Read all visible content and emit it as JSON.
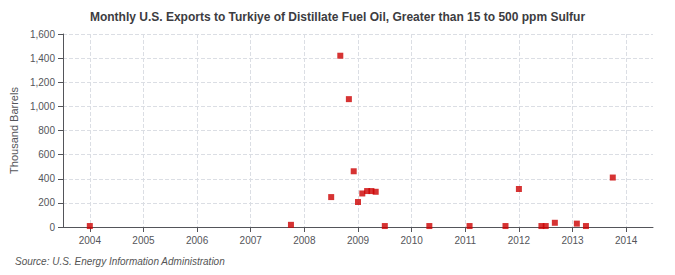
{
  "chart_data": {
    "type": "scatter",
    "title": "Monthly U.S. Exports to Turkiye of Distillate Fuel Oil, Greater than 15 to 500 ppm Sulfur",
    "ylabel": "Thousand Barrels",
    "source": "Source: U.S. Energy Information Administration",
    "color": "#cc0000",
    "marker": "square",
    "grid": true,
    "xlim": [
      2003.5,
      2014.5
    ],
    "xticks": [
      2004,
      2005,
      2006,
      2007,
      2008,
      2009,
      2010,
      2011,
      2012,
      2013,
      2014
    ],
    "ylim": [
      0,
      1600
    ],
    "yticks": [
      0,
      200,
      400,
      600,
      800,
      {
        "value": 1000,
        "label": "1,000"
      },
      {
        "value": 1200,
        "label": "1,200"
      },
      {
        "value": 1400,
        "label": "1,400"
      },
      {
        "value": 1600,
        "label": "1,600"
      }
    ],
    "x": [
      2004.0,
      2007.75,
      2008.5,
      2008.67,
      2008.83,
      2008.92,
      2009.0,
      2009.08,
      2009.17,
      2009.25,
      2009.33,
      2009.5,
      2010.33,
      2011.08,
      2011.75,
      2012.0,
      2012.42,
      2012.5,
      2012.67,
      2013.08,
      2013.25,
      2013.75
    ],
    "values": [
      8,
      18,
      248,
      1420,
      1060,
      462,
      207,
      278,
      298,
      298,
      292,
      8,
      8,
      8,
      8,
      315,
      8,
      8,
      35,
      28,
      8,
      410
    ]
  }
}
